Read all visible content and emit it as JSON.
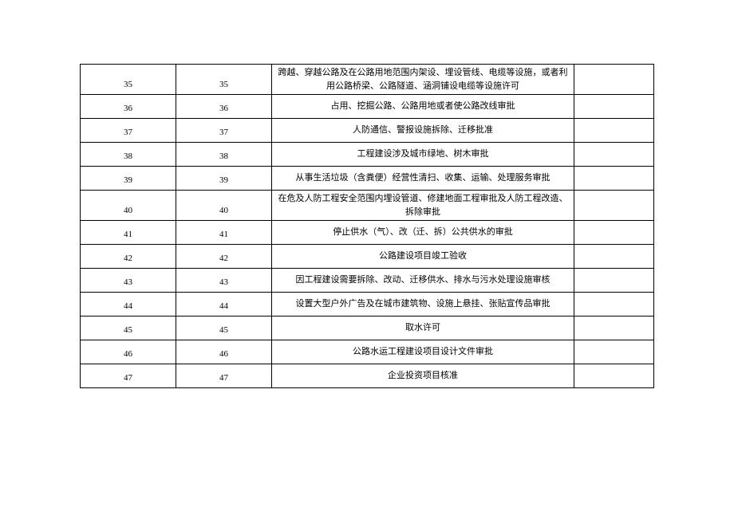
{
  "table": {
    "rows": [
      {
        "n1": "35",
        "n2": "35",
        "desc": "跨越、穿越公路及在公路用地范围内架设、埋设管线、电缆等设施，或者利用公路桥梁、公路隧道、涵洞铺设电缆等设施许可",
        "rh": "row-double"
      },
      {
        "n1": "36",
        "n2": "36",
        "desc": "占用、挖掘公路、公路用地或者使公路改线审批",
        "rh": "row-single"
      },
      {
        "n1": "37",
        "n2": "37",
        "desc": "人防通信、警报设施拆除、迁移批准",
        "rh": "row-single"
      },
      {
        "n1": "38",
        "n2": "38",
        "desc": "工程建设涉及城市绿地、树木审批",
        "rh": "row-single"
      },
      {
        "n1": "39",
        "n2": "39",
        "desc": "从事生活垃圾（含粪便）经营性清扫、收集、运输、处理服务审批",
        "rh": "row-single"
      },
      {
        "n1": "40",
        "n2": "40",
        "desc": "在危及人防工程安全范围内埋设管道、修建地面工程审批及人防工程改造、拆除审批",
        "rh": "row-double"
      },
      {
        "n1": "41",
        "n2": "41",
        "desc": "停止供水（气）、改（迁、拆）公共供水的审批",
        "rh": "row-single"
      },
      {
        "n1": "42",
        "n2": "42",
        "desc": "公路建设项目竣工验收",
        "rh": "row-single"
      },
      {
        "n1": "43",
        "n2": "43",
        "desc": "因工程建设需要拆除、改动、迁移供水、排水与污水处理设施审核",
        "rh": "row-single"
      },
      {
        "n1": "44",
        "n2": "44",
        "desc": "设置大型户外广告及在城市建筑物、设施上悬挂、张贴宣传品审批",
        "rh": "row-single"
      },
      {
        "n1": "45",
        "n2": "45",
        "desc": "取水许可",
        "rh": "row-single"
      },
      {
        "n1": "46",
        "n2": "46",
        "desc": "公路水运工程建设项目设计文件审批",
        "rh": "row-single"
      },
      {
        "n1": "47",
        "n2": "47",
        "desc": "企业投资项目核准",
        "rh": "row-single"
      }
    ]
  }
}
